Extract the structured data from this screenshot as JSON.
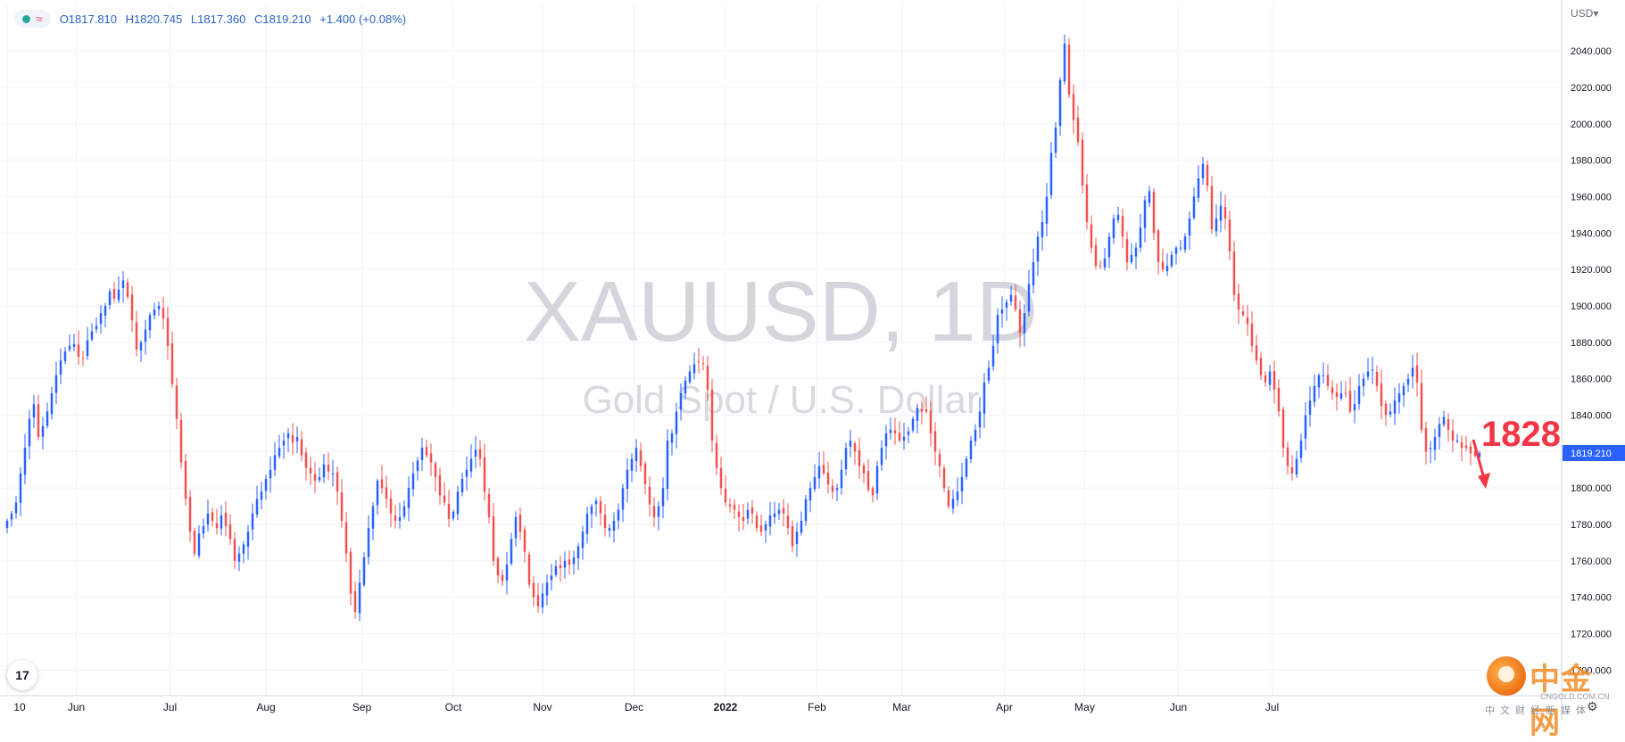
{
  "legend": {
    "open": "O1817.810",
    "high": "H1820.745",
    "low": "L1817.360",
    "close": "C1819.210",
    "change": "+1.400 (+0.08%)",
    "wave_symbol": "≈"
  },
  "currency_selector": "USD▾",
  "watermark": {
    "symbol": "XAUUSD, 1D",
    "name": "Gold Spot / U.S. Dollar"
  },
  "last_price_label": "1819.210",
  "annotation": {
    "text": "1828",
    "color": "#f23645"
  },
  "logo": {
    "tv": "17",
    "cn_name": "中金网",
    "cn_url": "CNGOLD.COM.CN",
    "cn_sub": "中文财经新媒体"
  },
  "colors": {
    "up": "#2962ff",
    "down": "#ef5350",
    "grid": "#f0f3fa",
    "axis_text": "#131722",
    "last_label_bg": "#2962ff"
  },
  "icons": {
    "settings": "gear-icon",
    "tv_logo": "tradingview-logo-icon",
    "cn_logo": "cngold-logo-icon"
  },
  "chart_data": {
    "type": "candlestick",
    "title": "XAUUSD, 1D",
    "subtitle": "Gold Spot / U.S. Dollar",
    "ylabel": "",
    "currency": "USD",
    "ylim": [
      1686,
      2066
    ],
    "y_ticks": [
      1700,
      1720,
      1740,
      1760,
      1780,
      1800,
      1820,
      1840,
      1860,
      1880,
      1900,
      1920,
      1940,
      1960,
      1980,
      2000,
      2020,
      2040
    ],
    "x_ticks": [
      {
        "label": "10",
        "pos": 0.0
      },
      {
        "label": "Jun",
        "pos": 15.5
      },
      {
        "label": "Jul",
        "pos": 36.5
      },
      {
        "label": "Aug",
        "pos": 58.0
      },
      {
        "label": "Sep",
        "pos": 79.5
      },
      {
        "label": "Oct",
        "pos": 100.0
      },
      {
        "label": "Nov",
        "pos": 120.0
      },
      {
        "label": "Dec",
        "pos": 140.5
      },
      {
        "label": "2022",
        "pos": 161.0
      },
      {
        "label": "Feb",
        "pos": 181.5
      },
      {
        "label": "Mar",
        "pos": 200.5
      },
      {
        "label": "Apr",
        "pos": 223.5
      },
      {
        "label": "May",
        "pos": 241.5
      },
      {
        "label": "Jun",
        "pos": 262.5
      },
      {
        "label": "Jul",
        "pos": 283.5
      }
    ],
    "grid": true,
    "last_price": 1819.21,
    "candles_close": [
      1782,
      1786,
      1792,
      1808,
      1822,
      1838,
      1846,
      1828,
      1834,
      1842,
      1852,
      1862,
      1870,
      1875,
      1878,
      1879,
      1872,
      1871,
      1881,
      1886,
      1889,
      1896,
      1900,
      1908,
      1904,
      1909,
      1914,
      1905,
      1892,
      1876,
      1880,
      1887,
      1895,
      1898,
      1900,
      1893,
      1878,
      1857,
      1838,
      1814,
      1794,
      1776,
      1764,
      1775,
      1779,
      1786,
      1782,
      1778,
      1785,
      1779,
      1772,
      1760,
      1764,
      1769,
      1776,
      1786,
      1794,
      1798,
      1805,
      1810,
      1818,
      1822,
      1826,
      1830,
      1825,
      1828,
      1818,
      1811,
      1808,
      1804,
      1806,
      1813,
      1809,
      1808,
      1798,
      1782,
      1764,
      1742,
      1732,
      1748,
      1762,
      1778,
      1790,
      1804,
      1800,
      1794,
      1786,
      1782,
      1784,
      1790,
      1800,
      1808,
      1815,
      1822,
      1818,
      1814,
      1806,
      1796,
      1792,
      1783,
      1787,
      1798,
      1805,
      1810,
      1816,
      1821,
      1816,
      1798,
      1784,
      1760,
      1752,
      1749,
      1758,
      1772,
      1784,
      1776,
      1765,
      1747,
      1740,
      1735,
      1742,
      1748,
      1752,
      1757,
      1756,
      1760,
      1758,
      1762,
      1768,
      1776,
      1786,
      1790,
      1793,
      1786,
      1778,
      1778,
      1782,
      1788,
      1800,
      1810,
      1816,
      1822,
      1812,
      1802,
      1791,
      1784,
      1790,
      1800,
      1826,
      1830,
      1842,
      1852,
      1859,
      1864,
      1868,
      1869,
      1868,
      1854,
      1826,
      1811,
      1800,
      1792,
      1790,
      1788,
      1784,
      1782,
      1788,
      1786,
      1778,
      1776,
      1780,
      1785,
      1786,
      1788,
      1786,
      1778,
      1768,
      1776,
      1782,
      1794,
      1800,
      1806,
      1812,
      1808,
      1802,
      1798,
      1800,
      1810,
      1822,
      1826,
      1820,
      1812,
      1808,
      1799,
      1796,
      1812,
      1822,
      1830,
      1832,
      1830,
      1826,
      1828,
      1831,
      1838,
      1844,
      1842,
      1842,
      1830,
      1820,
      1812,
      1800,
      1790,
      1794,
      1798,
      1806,
      1816,
      1826,
      1832,
      1842,
      1858,
      1866,
      1878,
      1895,
      1898,
      1902,
      1906,
      1898,
      1885,
      1896,
      1912,
      1924,
      1938,
      1946,
      1960,
      1984,
      1998,
      2024,
      2044,
      2016,
      2002,
      1990,
      1966,
      1946,
      1932,
      1922,
      1922,
      1926,
      1938,
      1948,
      1950,
      1938,
      1924,
      1928,
      1932,
      1943,
      1958,
      1963,
      1940,
      1924,
      1920,
      1922,
      1928,
      1932,
      1932,
      1938,
      1948,
      1960,
      1970,
      1978,
      1966,
      1942,
      1948,
      1955,
      1948,
      1930,
      1906,
      1898,
      1895,
      1890,
      1878,
      1870,
      1862,
      1858,
      1864,
      1854,
      1842,
      1822,
      1812,
      1808,
      1816,
      1826,
      1840,
      1848,
      1856,
      1862,
      1862,
      1856,
      1852,
      1850,
      1852,
      1852,
      1842,
      1846,
      1856,
      1860,
      1864,
      1865,
      1856,
      1845,
      1840,
      1842,
      1848,
      1852,
      1856,
      1860,
      1866,
      1858,
      1832,
      1820,
      1822,
      1828,
      1835,
      1839,
      1832,
      1826,
      1826,
      1822,
      1822,
      1819,
      1817.81,
      1819.21
    ]
  }
}
